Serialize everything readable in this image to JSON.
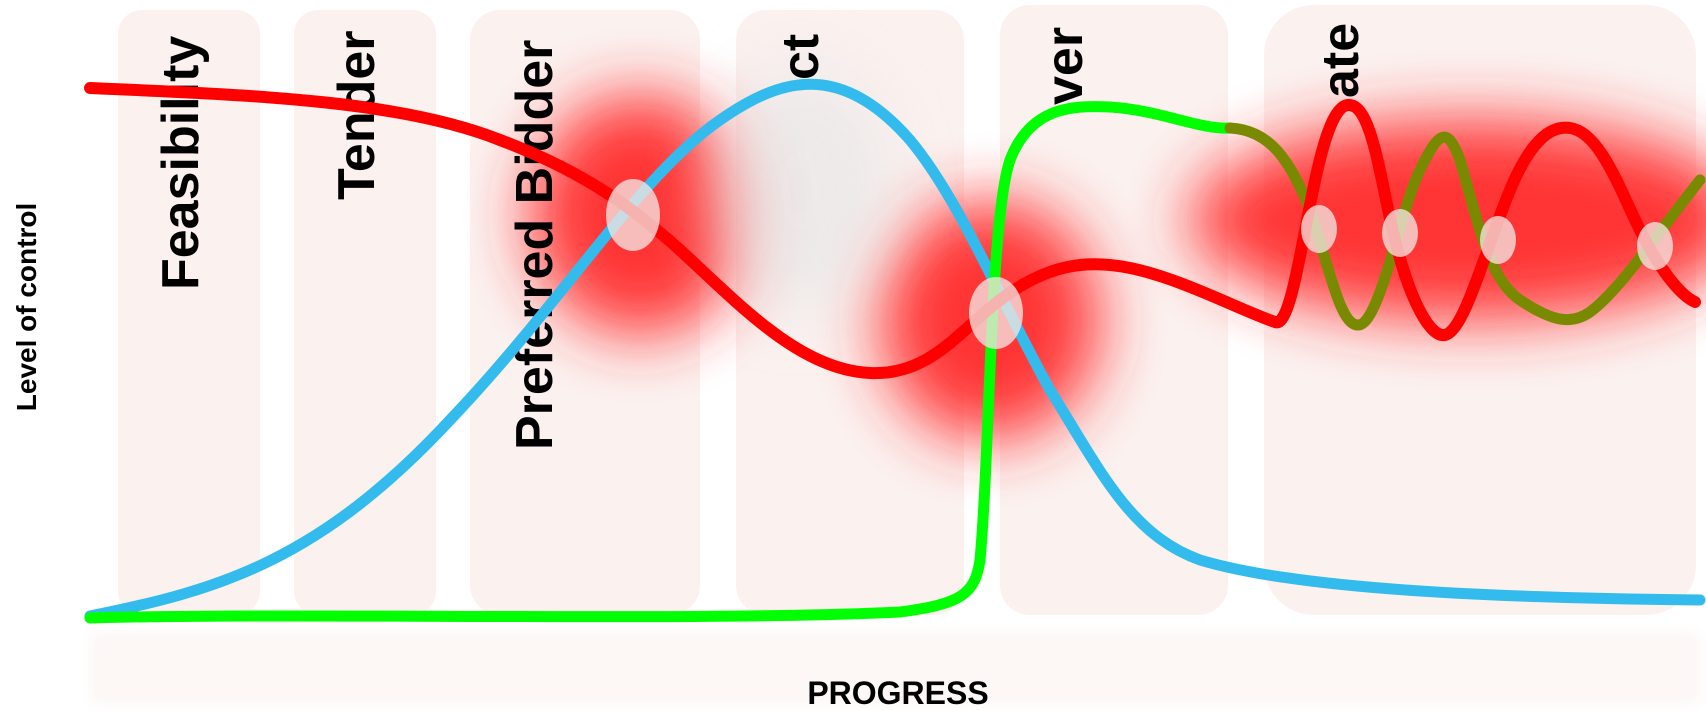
{
  "diagram": {
    "axes": {
      "y_label": "Level of control",
      "x_label": "PROGRESS"
    },
    "phases": [
      {
        "id": "feasibility",
        "label": "Feasibility"
      },
      {
        "id": "tender",
        "label": "Tender"
      },
      {
        "id": "preferred-bidder",
        "label": "Preferred Bidder"
      },
      {
        "id": "contract",
        "label": "ct"
      },
      {
        "id": "handover",
        "label": "ver"
      },
      {
        "id": "operate",
        "label": "ate"
      }
    ],
    "curves": [
      {
        "id": "red",
        "color": "#ff0000"
      },
      {
        "id": "blue",
        "color": "#33bbee"
      },
      {
        "id": "green",
        "color": "#00ff00"
      },
      {
        "id": "olive",
        "color": "#7a8a00"
      }
    ],
    "colors": {
      "phase_band": "#fbf1ef",
      "conflict_glow": "#ff2a2a",
      "crossing_marker": "#f3e4e0"
    }
  }
}
